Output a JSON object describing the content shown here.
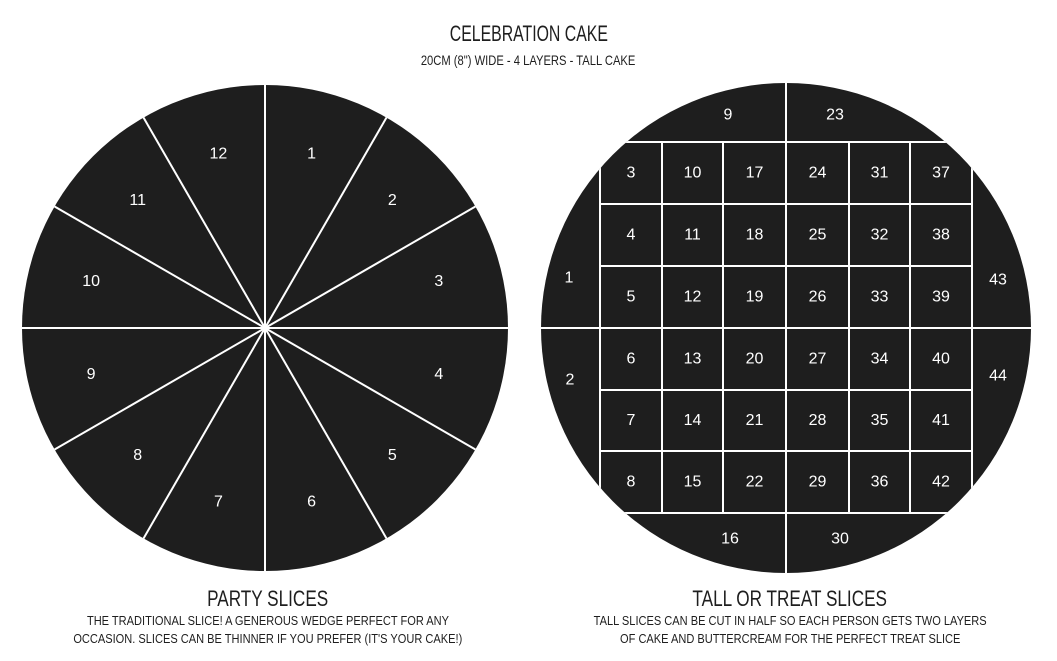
{
  "title": "CELEBRATION CAKE",
  "subtitle": "20CM (8\") WIDE -  4 LAYERS - TALL CAKE",
  "colors": {
    "cake": "#1e1e1e",
    "line": "#ffffff",
    "text": "#1e1e1e"
  },
  "party": {
    "heading": "PARTY SLICES",
    "desc_line1": "THE TRADITIONAL SLICE! A GENEROUS WEDGE PERFECT FOR ANY",
    "desc_line2": "OCCASION. SLICES CAN BE THINNER IF YOU PREFER (IT'S YOUR CAKE!)",
    "slices": [
      "1",
      "2",
      "3",
      "4",
      "5",
      "6",
      "7",
      "8",
      "9",
      "10",
      "11",
      "12"
    ]
  },
  "treat": {
    "heading": "TALL OR TREAT SLICES",
    "desc_line1": "TALL SLICES CAN BE CUT IN HALF SO EACH PERSON GETS TWO LAYERS",
    "desc_line2": "OF CAKE AND BUTTERCREAM FOR THE PERFECT TREAT SLICE",
    "grid": [
      [
        "3",
        "10",
        "17",
        "24",
        "31",
        "37"
      ],
      [
        "4",
        "11",
        "18",
        "25",
        "32",
        "38"
      ],
      [
        "5",
        "12",
        "19",
        "26",
        "33",
        "39"
      ],
      [
        "6",
        "13",
        "20",
        "27",
        "34",
        "40"
      ],
      [
        "7",
        "14",
        "21",
        "28",
        "35",
        "41"
      ],
      [
        "8",
        "15",
        "22",
        "29",
        "36",
        "42"
      ]
    ],
    "edge": {
      "top_left": "9",
      "top_right": "23",
      "bottom_left": "16",
      "bottom_right": "30",
      "left_top": "1",
      "left_bottom": "2",
      "right_top": "43",
      "right_bottom": "44"
    }
  }
}
